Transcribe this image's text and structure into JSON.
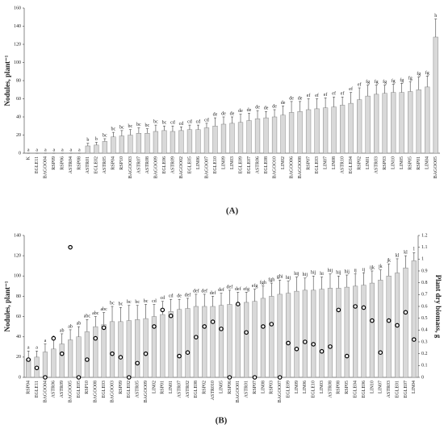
{
  "chart_data": [
    {
      "type": "bar",
      "panel_label": "(A)",
      "y_label": "Nodules, plant⁻¹",
      "color": "#d9d9d9",
      "categories": [
        "K",
        "EGLE11",
        "BAGOO04",
        "RSP09",
        "RSP06",
        "ASTR04",
        "RSP08",
        "ASTR01",
        "EGLE02",
        "ASTR05",
        "RSP04",
        "RSP10",
        "BAGOO03",
        "ASTR07",
        "ASTR08",
        "BAGOO09",
        "EGLE06",
        "ASTR09",
        "BAGOO02",
        "EGLE05",
        "LIN06",
        "BAGOO07",
        "EGLE10",
        "LIN09",
        "LIN03",
        "EGLE09",
        "EGLE07",
        "ASTR06",
        "EGLE08",
        "BAGOO10",
        "LIN02",
        "BAGOO06",
        "BAGOO08",
        "RSP07",
        "EGLE03",
        "LIN07",
        "LIN08",
        "ASTR10",
        "EGLE04",
        "RSP02",
        "LIN01",
        "ASTR03",
        "RSP03",
        "LIN10",
        "LIN05",
        "RSP05",
        "RSP01",
        "LIN04",
        "BAGOO05"
      ],
      "values": [
        0,
        0,
        0,
        0,
        0,
        0,
        0,
        8,
        9,
        13,
        18,
        19,
        20,
        22,
        22,
        24,
        25,
        24,
        25,
        26,
        26,
        28,
        30,
        32,
        33,
        34,
        36,
        38,
        39,
        40,
        42,
        45,
        46,
        48,
        49,
        50,
        51,
        53,
        55,
        59,
        63,
        65,
        66,
        67,
        67,
        68,
        70,
        73,
        128
      ],
      "errors": [
        0,
        0,
        0,
        0,
        0,
        0,
        0,
        3,
        3,
        3,
        5,
        6,
        6,
        6,
        5,
        7,
        5,
        6,
        4,
        5,
        5,
        5,
        9,
        8,
        7,
        9,
        8,
        9,
        7,
        8,
        10,
        12,
        11,
        12,
        11,
        11,
        11,
        9,
        12,
        13,
        12,
        10,
        9,
        9,
        10,
        11,
        14,
        12,
        20
      ],
      "letters": [
        "a",
        "a",
        "a",
        "a",
        "a",
        "a",
        "a",
        "b",
        "b",
        "bc",
        "bc",
        "bc",
        "bc",
        "bc",
        "bc",
        "bc",
        "bc",
        "cd",
        "cd",
        "cd",
        "cd",
        "cd",
        "de",
        "de",
        "de",
        "de",
        "de",
        "de",
        "de",
        "de",
        "de",
        "de",
        "de",
        "ef",
        "ef",
        "ef",
        "ef",
        "ef",
        "ef",
        "ef",
        "fg",
        "fg",
        "fg",
        "fg",
        "fg",
        "fg",
        "fg",
        "fg",
        "h"
      ],
      "ylim": [
        0,
        160
      ],
      "yticks": [
        0,
        20,
        40,
        60,
        80,
        100,
        120,
        140,
        160
      ],
      "grid": false
    },
    {
      "type": "combo",
      "panel_label": "(B)",
      "y_label": "Nodules, plant⁻¹",
      "y2_label": "Plant dry biomass, g",
      "categories": [
        "RSP04",
        "EGLE11",
        "BAGOO04",
        "ASTR06",
        "ASTR09",
        "BAGOO05",
        "EGLE05",
        "RSP10",
        "BAGOO08",
        "EGLE03",
        "BAGOO03",
        "RSP09",
        "EGLE02",
        "ASTR05",
        "BAGOO09",
        "LIN02",
        "RSP01",
        "LIN01",
        "ASTR07",
        "ASTR02",
        "EGLE08",
        "RSP02",
        "ASTR010",
        "LIN05",
        "RSP06",
        "BAGOO01",
        "ASTR01",
        "RSP07",
        "LIN08",
        "RSP03",
        "BAGOO07",
        "EGLE09",
        "LIN09",
        "LIN06",
        "EGLE10",
        "LIN03",
        "ASTR08",
        "RSP08",
        "RSP05",
        "EGLE04",
        "EGLE06",
        "LIN10",
        "LIN07",
        "ASTR03",
        "EGLE01",
        "EGLE07",
        "LIN04"
      ],
      "series": [
        {
          "type": "bar",
          "color": "#d9d9d9",
          "values": [
            18,
            20,
            25,
            28,
            33,
            37,
            40,
            45,
            50,
            52,
            55,
            55,
            56,
            57,
            58,
            60,
            62,
            65,
            67,
            68,
            70,
            70,
            70,
            71,
            72,
            72,
            74,
            75,
            78,
            80,
            82,
            83,
            85,
            86,
            86,
            87,
            88,
            88,
            89,
            90,
            91,
            93,
            96,
            100,
            103,
            108,
            115
          ],
          "errors": [
            8,
            6,
            8,
            9,
            10,
            10,
            10,
            12,
            10,
            12,
            15,
            14,
            15,
            14,
            14,
            12,
            13,
            12,
            10,
            10,
            12,
            12,
            10,
            12,
            14,
            12,
            10,
            12,
            12,
            13,
            14,
            12,
            14,
            12,
            14,
            12,
            14,
            12,
            12,
            12,
            12,
            12,
            10,
            12,
            14,
            12,
            8
          ],
          "letters": [
            "a",
            "a",
            "a",
            "a",
            "ab",
            "ab",
            "ab",
            "abc",
            "abc",
            "abc",
            "bc",
            "bc",
            "bc",
            "bc",
            "bc",
            "cd",
            "cd",
            "cd",
            "de",
            "def",
            "def",
            "def",
            "def",
            "def",
            "def",
            "def",
            "efg",
            "efg",
            "fgh",
            "fgh",
            "ghi",
            "hij",
            "hij",
            "hij",
            "hij",
            "hi",
            "hij",
            "hij",
            "hij",
            "ij",
            "ij",
            "ijk",
            "jk",
            "jk",
            "kl",
            "kl",
            "l"
          ]
        },
        {
          "type": "scatter",
          "axis": "y2",
          "color": "#000000",
          "values": [
            0.15,
            0.08,
            0,
            0.33,
            0.2,
            1.1,
            0,
            0.15,
            0.33,
            0.42,
            0.2,
            0.17,
            0,
            0.12,
            0.2,
            0.43,
            0.57,
            0.52,
            0.18,
            0.21,
            0.34,
            0.43,
            0.47,
            0.41,
            0,
            0.62,
            0.38,
            0,
            0.43,
            0.45,
            0,
            0.29,
            0.24,
            0.3,
            0.28,
            0.22,
            0.26,
            0.57,
            0.18,
            0.6,
            0.59,
            0.48,
            0.21,
            0.48,
            0.44,
            0.55,
            0.32
          ]
        }
      ],
      "ylim": [
        0,
        140
      ],
      "yticks": [
        0,
        20,
        40,
        60,
        80,
        100,
        120,
        140
      ],
      "y2lim": [
        0,
        1.2
      ],
      "y2ticks": [
        0,
        0.1,
        0.2,
        0.3,
        0.4,
        0.5,
        0.6,
        0.7,
        0.8,
        0.9,
        1,
        1.1,
        1.2
      ],
      "grid": false
    }
  ]
}
